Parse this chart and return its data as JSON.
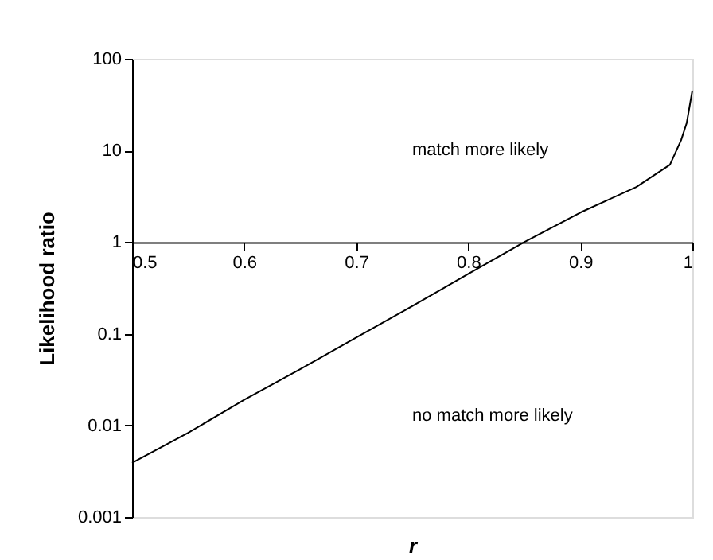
{
  "chart_data": {
    "type": "line",
    "xlabel": "r",
    "ylabel": "Likelihood ratio",
    "log": "y",
    "x": [
      0.5,
      0.55,
      0.6,
      0.65,
      0.7,
      0.75,
      0.8,
      0.85,
      0.9,
      0.95,
      0.98,
      0.99,
      0.995,
      1.0
    ],
    "series": [
      {
        "color": "#000000",
        "values": [
          0.0039,
          0.0083,
          0.019,
          0.041,
          0.091,
          0.2,
          0.45,
          1.0,
          2.1,
          4.0,
          7,
          13,
          20,
          45
        ]
      }
    ],
    "xlim": [
      0.5,
      1
    ],
    "xticks": [
      0.5,
      0.6,
      0.7,
      0.8,
      0.9,
      1
    ],
    "ylim": [
      0.001,
      100
    ],
    "yticks": [
      0.001,
      0.01,
      0.1,
      1,
      10,
      100
    ],
    "annotations": [
      "match more likely",
      "no match more likely"
    ],
    "grid": false,
    "marker": "none",
    "line_style": "solid"
  }
}
